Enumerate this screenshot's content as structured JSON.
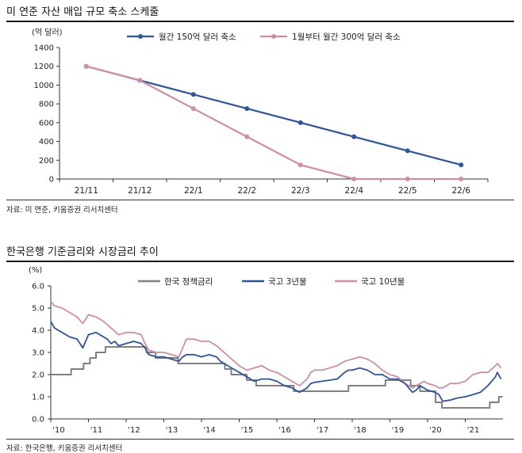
{
  "panel1": {
    "title": "미 연준 자산 매입 규모 축소 스케줄",
    "source": "자료: 미 연준, 키움증권 리서치센터"
  },
  "panel2": {
    "title": "한국은행 기준금리와 시장금리 추이",
    "source": "자료: 한국은행, 키움증권 리서치센터"
  },
  "chart_data": [
    {
      "type": "line",
      "title": "미 연준 자산 매입 규모 축소 스케줄",
      "ylabel": "(억 달러)",
      "ylim": [
        0,
        1400
      ],
      "yticks": [
        0,
        200,
        400,
        600,
        800,
        1000,
        1200,
        1400
      ],
      "categories": [
        "21/11",
        "21/12",
        "22/1",
        "22/2",
        "22/3",
        "22/4",
        "22/5",
        "22/6"
      ],
      "series": [
        {
          "name": "월간 150억 달러 축소",
          "color": "#2f5597",
          "values": [
            1200,
            1050,
            900,
            750,
            600,
            450,
            300,
            150
          ]
        },
        {
          "name": "1월부터 월간 300억 달러 축소",
          "color": "#cc8fa6",
          "values": [
            1200,
            1050,
            750,
            450,
            150,
            0,
            0,
            0
          ]
        }
      ],
      "legend": "top"
    },
    {
      "type": "line",
      "title": "한국은행 기준금리와 시장금리 추이",
      "ylabel": "(%)",
      "ylim": [
        0,
        6
      ],
      "yticks": [
        "0.0",
        "1.0",
        "2.0",
        "3.0",
        "4.0",
        "5.0",
        "6.0"
      ],
      "xlim": [
        2010,
        2022
      ],
      "xticks": [
        "'10",
        "'11",
        "'12",
        "'13",
        "'14",
        "'15",
        "'16",
        "'17",
        "'18",
        "'19",
        "'20",
        "'21"
      ],
      "legend": "top",
      "series": [
        {
          "name": "한국 정책금리",
          "color": "#808080",
          "step": true,
          "x": [
            2010.0,
            2010.54,
            2010.87,
            2011.04,
            2011.2,
            2011.45,
            2012.54,
            2012.78,
            2013.38,
            2014.62,
            2014.79,
            2015.2,
            2015.45,
            2016.45,
            2017.9,
            2018.88,
            2019.55,
            2019.8,
            2020.21,
            2020.38,
            2021.65,
            2021.89,
            2021.99
          ],
          "y": [
            2.0,
            2.25,
            2.5,
            2.75,
            3.0,
            3.25,
            3.0,
            2.75,
            2.5,
            2.25,
            2.0,
            1.75,
            1.5,
            1.25,
            1.5,
            1.75,
            1.5,
            1.25,
            0.75,
            0.5,
            0.75,
            1.0,
            1.0
          ]
        },
        {
          "name": "국고 3년물",
          "color": "#2f5597",
          "x": [
            2010.0,
            2010.1,
            2010.3,
            2010.5,
            2010.7,
            2010.85,
            2011.0,
            2011.2,
            2011.4,
            2011.5,
            2011.6,
            2011.7,
            2011.8,
            2012.0,
            2012.2,
            2012.4,
            2012.5,
            2012.6,
            2012.8,
            2013.0,
            2013.2,
            2013.4,
            2013.5,
            2013.6,
            2013.8,
            2014.0,
            2014.2,
            2014.4,
            2014.5,
            2014.6,
            2014.8,
            2015.0,
            2015.2,
            2015.4,
            2015.6,
            2015.8,
            2016.0,
            2016.2,
            2016.4,
            2016.5,
            2016.6,
            2016.8,
            2016.9,
            2017.0,
            2017.2,
            2017.4,
            2017.6,
            2017.8,
            2017.9,
            2018.0,
            2018.2,
            2018.4,
            2018.6,
            2018.8,
            2019.0,
            2019.2,
            2019.4,
            2019.6,
            2019.7,
            2019.8,
            2019.9,
            2020.0,
            2020.2,
            2020.3,
            2020.4,
            2020.6,
            2020.8,
            2021.0,
            2021.2,
            2021.4,
            2021.6,
            2021.8,
            2021.85,
            2021.95
          ],
          "y": [
            4.4,
            4.1,
            3.9,
            3.7,
            3.6,
            3.2,
            3.8,
            3.9,
            3.7,
            3.6,
            3.4,
            3.5,
            3.3,
            3.4,
            3.5,
            3.4,
            3.2,
            2.9,
            2.8,
            2.8,
            2.7,
            2.6,
            2.8,
            2.9,
            2.9,
            2.8,
            2.9,
            2.8,
            2.6,
            2.5,
            2.3,
            2.1,
            1.9,
            1.7,
            1.8,
            1.8,
            1.7,
            1.5,
            1.4,
            1.3,
            1.2,
            1.4,
            1.6,
            1.65,
            1.7,
            1.75,
            1.8,
            2.1,
            2.2,
            2.2,
            2.3,
            2.2,
            2.0,
            2.0,
            1.8,
            1.8,
            1.6,
            1.2,
            1.3,
            1.5,
            1.4,
            1.3,
            1.2,
            1.1,
            0.8,
            0.85,
            0.95,
            1.0,
            1.1,
            1.2,
            1.5,
            1.9,
            2.1,
            1.8
          ]
        },
        {
          "name": "국고 10년물",
          "color": "#cc8fa6",
          "x": [
            2010.0,
            2010.1,
            2010.3,
            2010.5,
            2010.7,
            2010.85,
            2011.0,
            2011.2,
            2011.4,
            2011.6,
            2011.8,
            2012.0,
            2012.2,
            2012.4,
            2012.5,
            2012.6,
            2012.8,
            2013.0,
            2013.2,
            2013.4,
            2013.5,
            2013.6,
            2013.8,
            2014.0,
            2014.2,
            2014.4,
            2014.6,
            2014.8,
            2015.0,
            2015.2,
            2015.4,
            2015.6,
            2015.8,
            2016.0,
            2016.2,
            2016.4,
            2016.6,
            2016.8,
            2016.9,
            2017.0,
            2017.2,
            2017.4,
            2017.6,
            2017.8,
            2018.0,
            2018.2,
            2018.4,
            2018.6,
            2018.8,
            2019.0,
            2019.2,
            2019.4,
            2019.6,
            2019.8,
            2019.9,
            2020.0,
            2020.2,
            2020.3,
            2020.4,
            2020.6,
            2020.8,
            2021.0,
            2021.2,
            2021.4,
            2021.6,
            2021.8,
            2021.85,
            2021.95
          ],
          "y": [
            5.3,
            5.1,
            5.0,
            4.8,
            4.6,
            4.3,
            4.7,
            4.6,
            4.4,
            4.1,
            3.8,
            3.9,
            3.9,
            3.8,
            3.4,
            3.1,
            3.0,
            3.0,
            2.9,
            2.8,
            3.2,
            3.6,
            3.6,
            3.5,
            3.5,
            3.3,
            3.0,
            2.7,
            2.4,
            2.2,
            2.3,
            2.4,
            2.2,
            2.1,
            1.9,
            1.7,
            1.5,
            1.8,
            2.1,
            2.2,
            2.2,
            2.3,
            2.4,
            2.6,
            2.7,
            2.8,
            2.7,
            2.5,
            2.2,
            2.0,
            1.9,
            1.6,
            1.4,
            1.6,
            1.7,
            1.6,
            1.5,
            1.4,
            1.4,
            1.6,
            1.6,
            1.7,
            2.0,
            2.1,
            2.1,
            2.4,
            2.5,
            2.3
          ]
        }
      ]
    }
  ]
}
